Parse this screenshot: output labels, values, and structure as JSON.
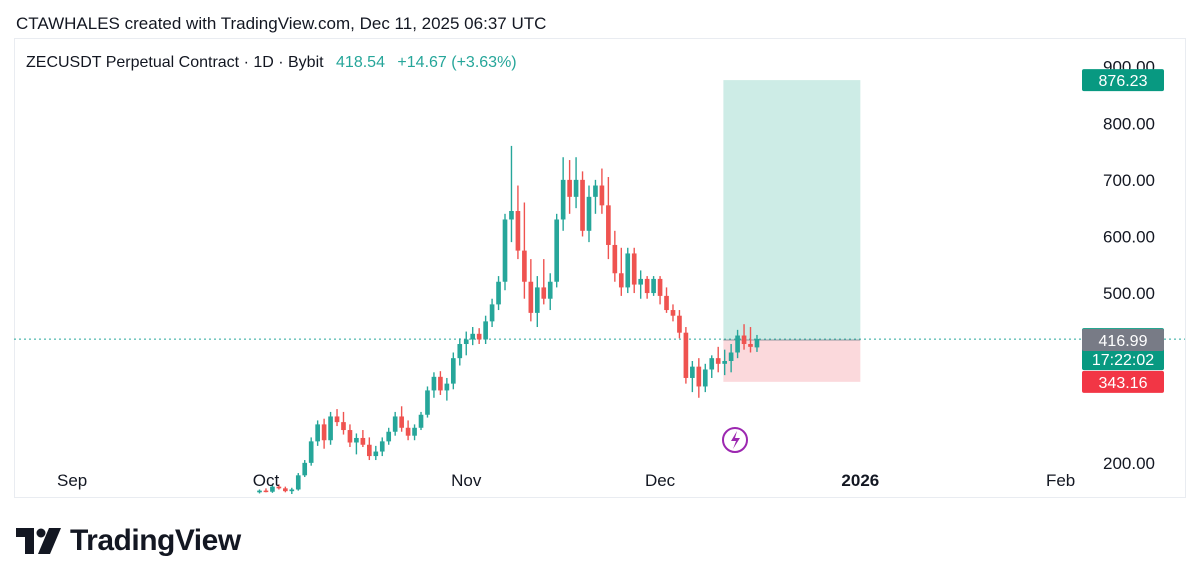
{
  "header": {
    "caption": "CTAWHALES created with TradingView.com, Dec 11, 2025 06:37 UTC"
  },
  "symbol": {
    "name": "ZECUSDT Perpetual Contract · 1D · Bybit",
    "last": "418.54",
    "change": "+14.67 (+3.63%)"
  },
  "footer": {
    "brand": "TradingView",
    "logo_icon": "tradingview-logo-icon"
  },
  "colors": {
    "up": "#26a69a",
    "down": "#ef5350",
    "profit_zone": "#cdece6",
    "loss_zone": "#fbd9dc",
    "stop_tag": "#f23645",
    "entry_tag": "#787b86",
    "event_icon": "#9c27b0"
  },
  "chart_data": {
    "type": "candlestick",
    "title": "ZECUSDT Perpetual Contract · 1D · Bybit",
    "y_ticks": [
      "200.00",
      "500.00",
      "600.00",
      "700.00",
      "800.00",
      "900.00"
    ],
    "x_ticks": [
      "Sep",
      "Oct",
      "Nov",
      "Dec",
      "2026",
      "Feb"
    ],
    "ylim": [
      145,
      910
    ],
    "x_range": [
      "2025-08-23",
      "2026-02-04"
    ],
    "price_tags": [
      {
        "label": "876.23",
        "value": 876.23,
        "color": "#089981"
      },
      {
        "label": "418.54",
        "sub": "17:22:02",
        "value": 418.54,
        "color": "#089981"
      },
      {
        "label": "416.99",
        "value": 416.99,
        "color": "#787b86"
      },
      {
        "label": "343.16",
        "value": 343.16,
        "color": "#f23645"
      }
    ],
    "position": {
      "kind": "long",
      "entry": 416.99,
      "target": 876.23,
      "stop": 343.16,
      "start": "2025-12-11",
      "end": "2026-01-01"
    },
    "current_price": 418.54,
    "candles": [
      [
        "2025-09-30",
        148,
        153,
        146,
        151
      ],
      [
        "2025-10-01",
        151,
        155,
        148,
        149
      ],
      [
        "2025-10-02",
        149,
        161,
        147,
        158
      ],
      [
        "2025-10-03",
        158,
        162,
        153,
        155
      ],
      [
        "2025-10-04",
        155,
        158,
        148,
        150
      ],
      [
        "2025-10-05",
        150,
        156,
        145,
        153
      ],
      [
        "2025-10-06",
        153,
        182,
        151,
        178
      ],
      [
        "2025-10-07",
        178,
        205,
        175,
        200
      ],
      [
        "2025-10-08",
        200,
        245,
        195,
        238
      ],
      [
        "2025-10-09",
        238,
        275,
        230,
        268
      ],
      [
        "2025-10-10",
        268,
        278,
        225,
        240
      ],
      [
        "2025-10-11",
        240,
        290,
        232,
        282
      ],
      [
        "2025-10-12",
        282,
        295,
        265,
        272
      ],
      [
        "2025-10-13",
        272,
        290,
        250,
        258
      ],
      [
        "2025-10-14",
        258,
        268,
        228,
        236
      ],
      [
        "2025-10-15",
        236,
        252,
        215,
        244
      ],
      [
        "2025-10-16",
        244,
        258,
        228,
        232
      ],
      [
        "2025-10-17",
        232,
        245,
        205,
        212
      ],
      [
        "2025-10-18",
        212,
        230,
        205,
        220
      ],
      [
        "2025-10-19",
        220,
        245,
        212,
        238
      ],
      [
        "2025-10-20",
        238,
        262,
        232,
        255
      ],
      [
        "2025-10-21",
        255,
        290,
        248,
        282
      ],
      [
        "2025-10-22",
        282,
        300,
        255,
        262
      ],
      [
        "2025-10-23",
        262,
        275,
        240,
        248
      ],
      [
        "2025-10-24",
        248,
        268,
        240,
        262
      ],
      [
        "2025-10-25",
        262,
        290,
        258,
        285
      ],
      [
        "2025-10-26",
        285,
        335,
        280,
        328
      ],
      [
        "2025-10-27",
        328,
        360,
        315,
        352
      ],
      [
        "2025-10-28",
        352,
        362,
        320,
        328
      ],
      [
        "2025-10-29",
        328,
        350,
        310,
        340
      ],
      [
        "2025-10-30",
        340,
        395,
        330,
        385
      ],
      [
        "2025-10-31",
        385,
        420,
        372,
        410
      ],
      [
        "2025-11-01",
        410,
        432,
        390,
        418
      ],
      [
        "2025-11-02",
        418,
        440,
        408,
        428
      ],
      [
        "2025-11-03",
        428,
        438,
        410,
        418
      ],
      [
        "2025-11-04",
        418,
        460,
        410,
        450
      ],
      [
        "2025-11-05",
        450,
        490,
        440,
        480
      ],
      [
        "2025-11-06",
        480,
        530,
        470,
        520
      ],
      [
        "2025-11-07",
        520,
        640,
        505,
        630
      ],
      [
        "2025-11-08",
        630,
        760,
        590,
        645
      ],
      [
        "2025-11-09",
        645,
        690,
        560,
        575
      ],
      [
        "2025-11-10",
        575,
        660,
        490,
        520
      ],
      [
        "2025-11-11",
        520,
        560,
        450,
        465
      ],
      [
        "2025-11-12",
        465,
        530,
        440,
        510
      ],
      [
        "2025-11-13",
        510,
        560,
        480,
        490
      ],
      [
        "2025-11-14",
        490,
        535,
        470,
        520
      ],
      [
        "2025-11-15",
        520,
        640,
        510,
        630
      ],
      [
        "2025-11-16",
        630,
        740,
        610,
        700
      ],
      [
        "2025-11-17",
        700,
        735,
        640,
        670
      ],
      [
        "2025-11-18",
        670,
        740,
        650,
        700
      ],
      [
        "2025-11-19",
        700,
        715,
        600,
        610
      ],
      [
        "2025-11-20",
        610,
        690,
        590,
        670
      ],
      [
        "2025-11-21",
        670,
        700,
        640,
        690
      ],
      [
        "2025-11-22",
        690,
        720,
        640,
        655
      ],
      [
        "2025-11-23",
        655,
        705,
        560,
        585
      ],
      [
        "2025-11-24",
        585,
        610,
        520,
        535
      ],
      [
        "2025-11-25",
        535,
        580,
        495,
        510
      ],
      [
        "2025-11-26",
        510,
        580,
        500,
        570
      ],
      [
        "2025-11-27",
        570,
        580,
        500,
        515
      ],
      [
        "2025-11-28",
        515,
        540,
        490,
        525
      ],
      [
        "2025-11-29",
        525,
        530,
        490,
        500
      ],
      [
        "2025-11-30",
        500,
        530,
        495,
        525
      ],
      [
        "2025-12-01",
        525,
        530,
        480,
        495
      ],
      [
        "2025-12-02",
        495,
        510,
        465,
        470
      ],
      [
        "2025-12-03",
        470,
        480,
        450,
        460
      ],
      [
        "2025-12-04",
        460,
        470,
        420,
        430
      ],
      [
        "2025-12-05",
        430,
        440,
        340,
        350
      ],
      [
        "2025-12-06",
        350,
        380,
        325,
        370
      ],
      [
        "2025-12-07",
        370,
        385,
        315,
        335
      ],
      [
        "2025-12-08",
        335,
        375,
        325,
        365
      ],
      [
        "2025-12-09",
        365,
        390,
        350,
        385
      ],
      [
        "2025-12-10",
        385,
        405,
        360,
        375
      ],
      [
        "2025-12-11",
        375,
        400,
        355,
        380
      ],
      [
        "2025-12-12",
        380,
        410,
        360,
        395
      ],
      [
        "2025-12-13",
        395,
        435,
        385,
        425
      ],
      [
        "2025-12-14",
        425,
        445,
        400,
        410
      ],
      [
        "2025-12-15",
        410,
        440,
        395,
        405
      ],
      [
        "2025-12-16",
        404,
        426,
        396,
        419
      ]
    ]
  }
}
